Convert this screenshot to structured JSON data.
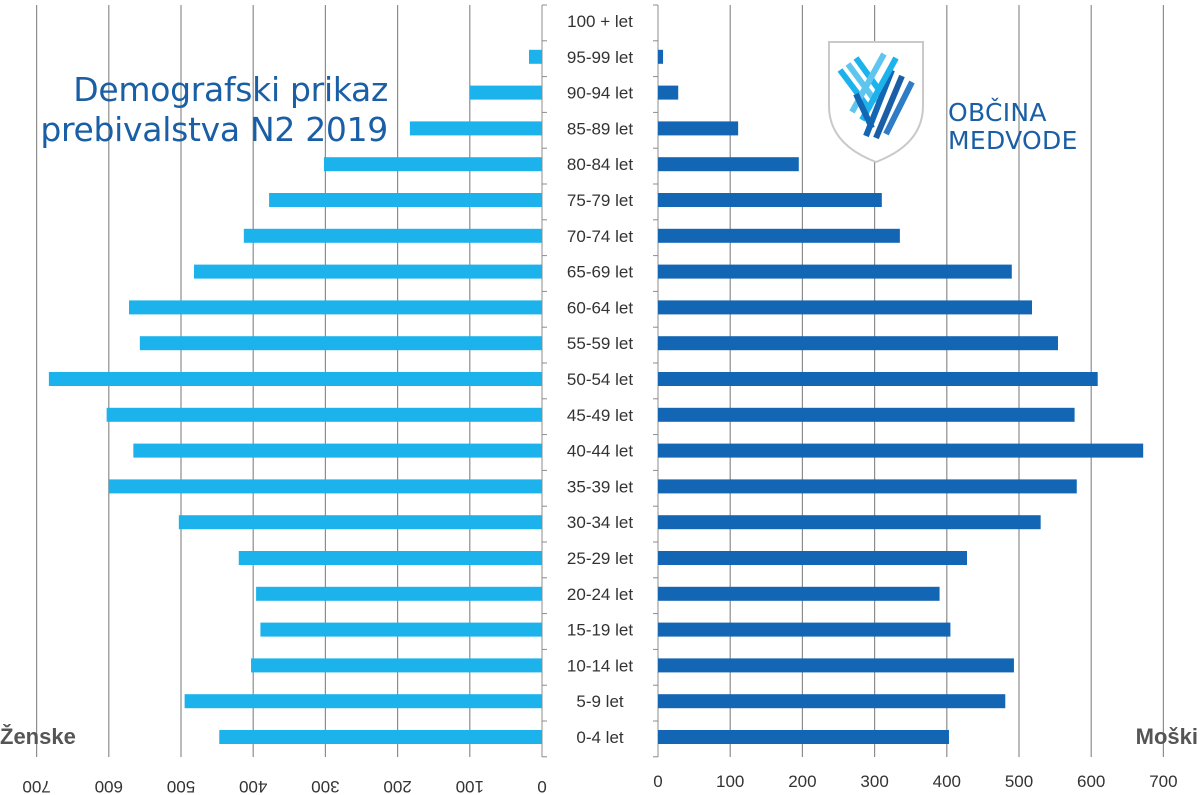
{
  "colors": {
    "female": "#1cb3ec",
    "male": "#1266b4",
    "grid": "#8c8c8c",
    "text": "#333333",
    "title": "#1a5fa6"
  },
  "header": {
    "title_line1": "Demografski prikaz",
    "title_line2": "prebivalstva N2 2019"
  },
  "logo": {
    "icon": "municipal-shield-logo-icon",
    "line1": "OBČINA",
    "line2": "MEDVODE"
  },
  "chart_data": {
    "type": "bar",
    "orientation": "population-pyramid",
    "categories": [
      "100 + let",
      "95-99 let",
      "90-94 let",
      "85-89 let",
      "80-84 let",
      "75-79 let",
      "70-74 let",
      "65-69 let",
      "60-64 let",
      "55-59 let",
      "50-54 let",
      "45-49 let",
      "40-44 let",
      "35-39 let",
      "30-34 let",
      "25-29 let",
      "20-24 let",
      "15-19 let",
      "10-14 let",
      "5-9 let",
      "0-4 let"
    ],
    "series": [
      {
        "name": "Ženske",
        "side": "left",
        "values": [
          0,
          18,
          100,
          183,
          302,
          378,
          413,
          482,
          572,
          557,
          683,
          603,
          566,
          600,
          503,
          420,
          396,
          390,
          403,
          495,
          447
        ]
      },
      {
        "name": "Moški",
        "side": "right",
        "values": [
          0,
          7,
          28,
          111,
          195,
          310,
          335,
          490,
          518,
          554,
          609,
          577,
          672,
          580,
          530,
          428,
          390,
          405,
          493,
          481,
          403
        ]
      }
    ],
    "xlim": [
      0,
      700
    ],
    "ticks": [
      0,
      100,
      200,
      300,
      400,
      500,
      600,
      700
    ],
    "grid": true
  }
}
